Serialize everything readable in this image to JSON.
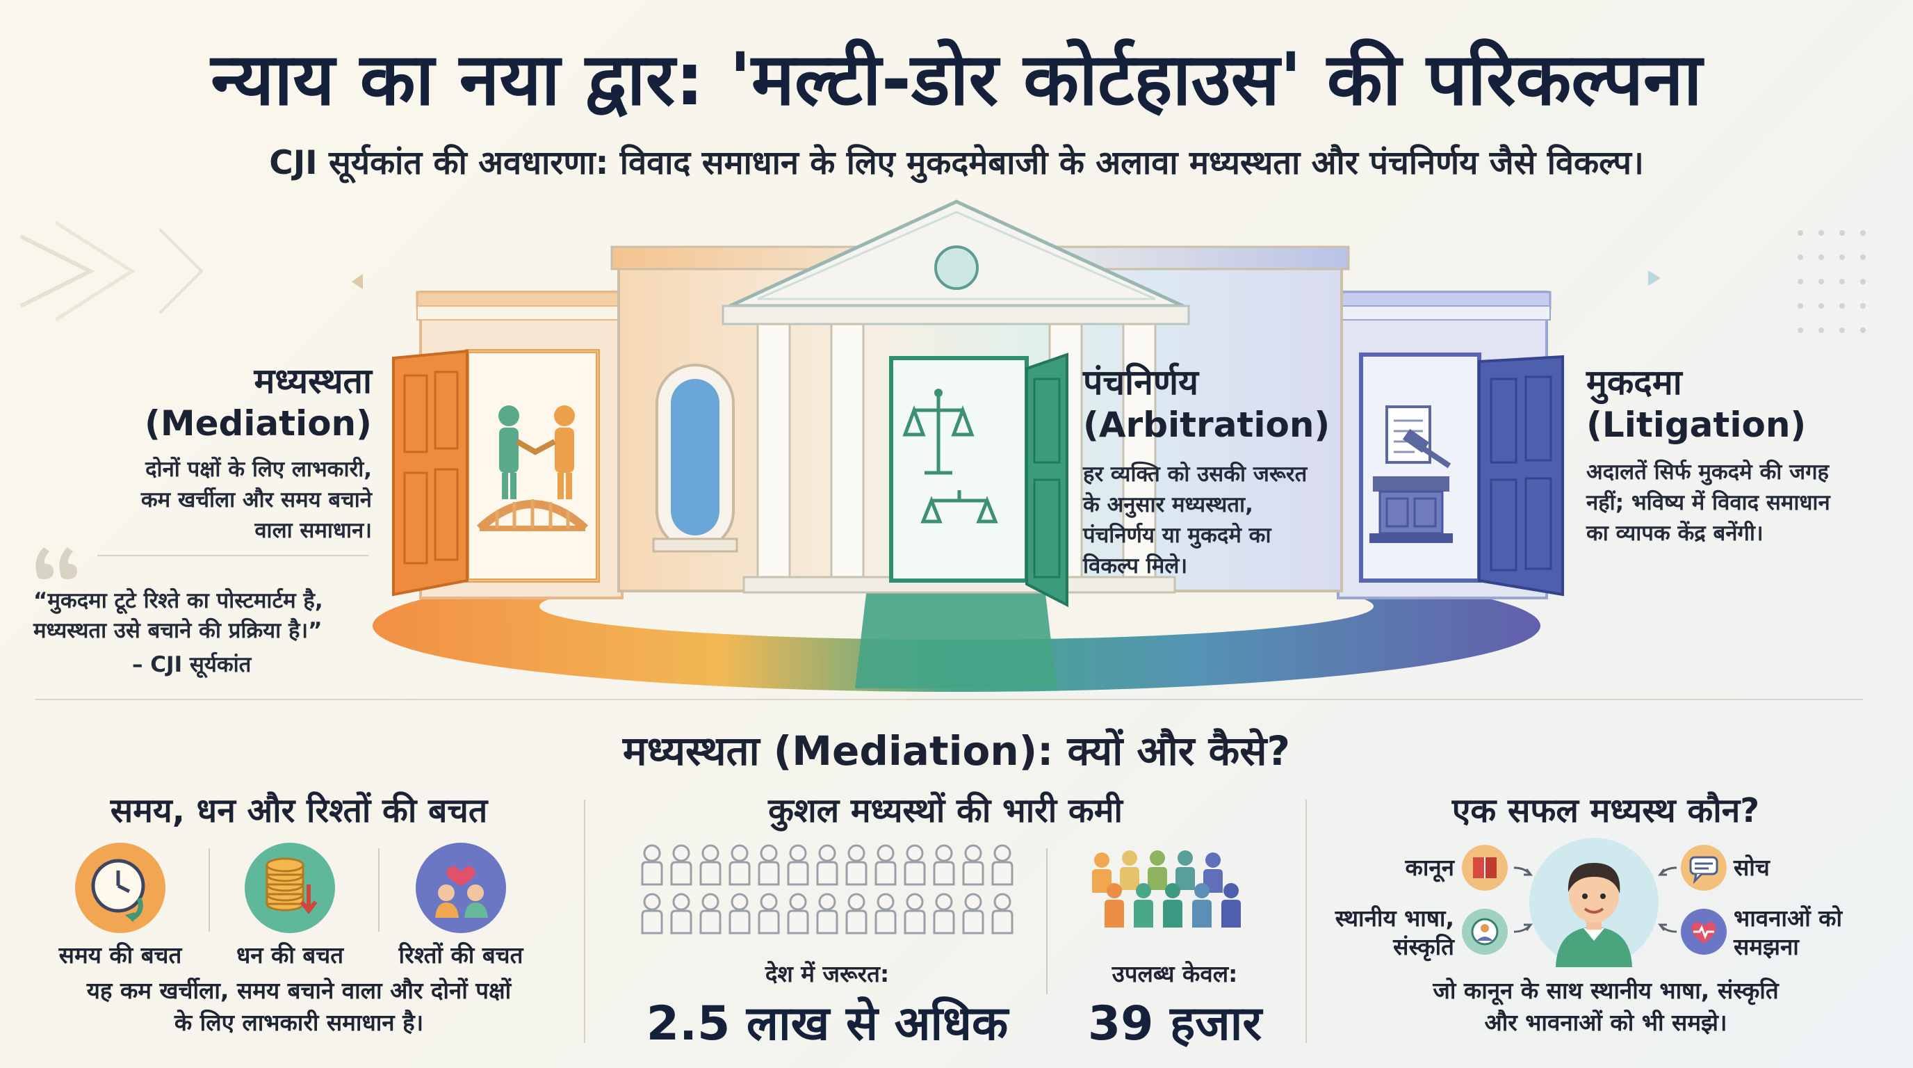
{
  "header": {
    "title": "न्याय का नया द्वार: 'मल्टी-डोर कोर्टहाउस' की परिकल्पना",
    "subtitle": "CJI सूर्यकांत की अवधारणा: विवाद समाधान के लिए मुकदमेबाजी के अलावा मध्यस्थता और पंचनिर्णय जैसे विकल्प।"
  },
  "doors": {
    "mediation": {
      "title_hi": "मध्यस्थता",
      "title_en": "(Mediation)",
      "desc": [
        "दोनों पक्षों के लिए लाभकारी,",
        "कम खर्चीला और समय बचाने",
        "वाला समाधान।"
      ],
      "color": "#ef8a3a"
    },
    "arbitration": {
      "title_hi": "पंचनिर्णय",
      "title_en": "(Arbitration)",
      "desc": [
        "हर व्यक्ति को उसकी जरूरत",
        "के अनुसार मध्यस्थता,",
        "पंचनिर्णय या मुकदमे का",
        "विकल्प मिले।"
      ],
      "color": "#2f9a78"
    },
    "litigation": {
      "title_hi": "मुकदमा",
      "title_en": "(Litigation)",
      "desc": [
        "अदालतें सिर्फ मुकदमे की जगह",
        "नहीं; भविष्य में विवाद समाधान",
        "का व्यापक केंद्र बनेंगी।"
      ],
      "color": "#4a5aa8"
    }
  },
  "quote": {
    "lines": [
      "“मुकदमा टूटे रिश्ते का पोस्टमार्टम है,",
      "मध्यस्थता उसे बचाने की प्रक्रिया है।”"
    ],
    "author": "– CJI सूर्यकांत"
  },
  "section": {
    "title": "मध्यस्थता (Mediation): क्यों और कैसे?",
    "savings": {
      "title": "समय, धन और रिश्तों की बचत",
      "items": [
        {
          "label": "समय की बचत",
          "icon": "clock-icon",
          "color": "#f2a654"
        },
        {
          "label": "धन की बचत",
          "icon": "coins-icon",
          "color": "#5fb89a"
        },
        {
          "label": "रिश्तों की बचत",
          "icon": "relationship-icon",
          "color": "#6b76c4"
        }
      ],
      "desc": [
        "यह कम खर्चीला, समय बचाने वाला और दोनों पक्षों",
        "के लिए लाभकारी समाधान है।"
      ]
    },
    "shortage": {
      "title": "कुशल मध्यस्थों की भारी कमी",
      "need_label": "देश में जरूरत:",
      "need_value": "2.5 लाख से अधिक",
      "available_label": "उपलब्ध केवल:",
      "available_value": "39 हजार"
    },
    "mediator": {
      "title": "एक सफल मध्यस्थ कौन?",
      "traits": {
        "law": "कानून",
        "thinking": "सोच",
        "language_1": "स्थानीय भाषा,",
        "language_2": "संस्कृति",
        "emotions_1": "भावनाओं को",
        "emotions_2": "समझना"
      },
      "desc": [
        "जो कानून के साथ स्थानीय भाषा, संस्कृति",
        "और भावनाओं को भी समझे।"
      ]
    }
  }
}
